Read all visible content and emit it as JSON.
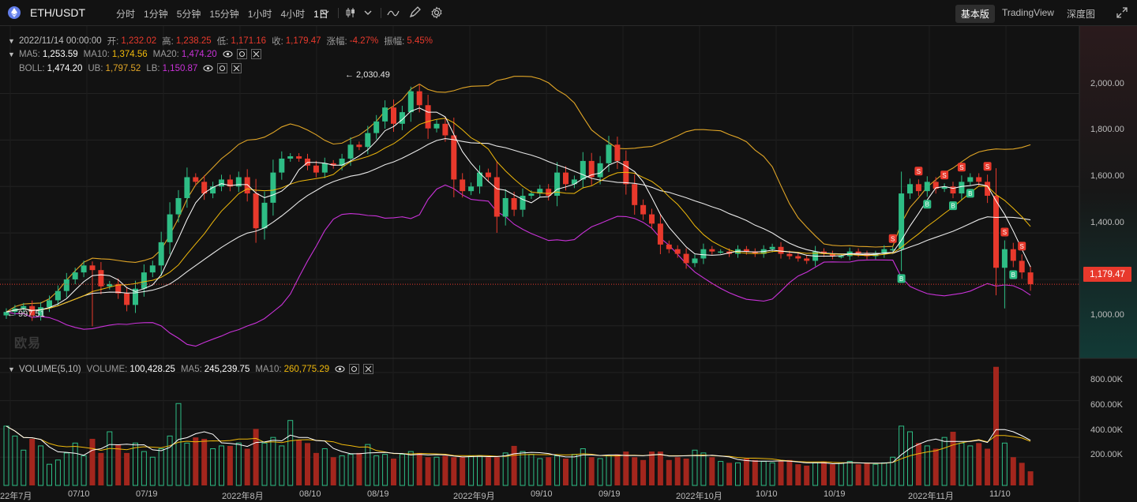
{
  "header": {
    "pair": "ETH/USDT",
    "intervals": [
      "分时",
      "1分钟",
      "5分钟",
      "15分钟",
      "1小时",
      "4小时",
      "1日"
    ],
    "active_interval": "1日",
    "modes": [
      "基本版",
      "TradingView",
      "深度图"
    ],
    "active_mode": "基本版"
  },
  "ohlc": {
    "date": "2022/11/14 00:00:00",
    "open_label": "开:",
    "open": "1,232.02",
    "high_label": "高:",
    "high": "1,238.25",
    "low_label": "低:",
    "low": "1,171.16",
    "close_label": "收:",
    "close": "1,179.47",
    "change_label": "涨幅:",
    "change": "-4.27%",
    "amp_label": "振幅:",
    "amp": "5.45%"
  },
  "ma": {
    "ma5_label": "MA5:",
    "ma5": "1,253.59",
    "ma10_label": "MA10:",
    "ma10": "1,374.56",
    "ma20_label": "MA20:",
    "ma20": "1,474.20"
  },
  "boll": {
    "label": "BOLL:",
    "mid": "1,474.20",
    "ub_label": "UB:",
    "ub": "1,797.52",
    "lb_label": "LB:",
    "lb": "1,150.87"
  },
  "volume": {
    "label": "VOLUME(5,10)",
    "vol_label": "VOLUME:",
    "vol": "100,428.25",
    "ma5_label": "MA5:",
    "ma5": "245,239.75",
    "ma10_label": "MA10:",
    "ma10": "260,775.29"
  },
  "price_axis": [
    "2,000.00",
    "1,800.00",
    "1,600.00",
    "1,400.00",
    "1,200.00",
    "1,000.00"
  ],
  "volume_axis": [
    "800.00K",
    "600.00K",
    "400.00K",
    "200.00K"
  ],
  "current_price": "1,179.47",
  "high_marker": "← 2,030.49",
  "low_marker": "← 997.51",
  "x_axis": [
    "22年7月",
    "07/10",
    "07/19",
    "2022年8月",
    "08/10",
    "08/19",
    "2022年9月",
    "09/10",
    "09/19",
    "2022年10月",
    "10/10",
    "10/19",
    "2022年11月",
    "11/10"
  ],
  "watermark": "欧易",
  "signals": {
    "sell": "S",
    "buy": "B"
  },
  "colors": {
    "up": "#2ebd85",
    "down": "#e8392c",
    "ma5": "#ffffff",
    "ma10": "#f0b90b",
    "ma20": "#ffffff",
    "boll_mid": "#ffffff",
    "boll_ub": "#e0a526",
    "boll_lb": "#c932d8"
  },
  "chart_data": {
    "type": "candlestick",
    "interval": "1日",
    "price_ylim": [
      860,
      2250
    ],
    "volume_ylim": [
      0,
      900000
    ],
    "close": [
      1060,
      1075,
      1085,
      1045,
      1080,
      1110,
      1150,
      1200,
      1230,
      1260,
      1240,
      1170,
      1180,
      1140,
      1090,
      1160,
      1230,
      1260,
      1360,
      1480,
      1550,
      1640,
      1620,
      1570,
      1600,
      1630,
      1600,
      1640,
      1570,
      1420,
      1530,
      1660,
      1720,
      1730,
      1720,
      1690,
      1660,
      1700,
      1690,
      1720,
      1780,
      1770,
      1830,
      1880,
      1940,
      1870,
      1920,
      2010,
      1950,
      1850,
      1870,
      1820,
      1630,
      1580,
      1600,
      1660,
      1640,
      1470,
      1550,
      1500,
      1560,
      1570,
      1590,
      1560,
      1660,
      1610,
      1630,
      1710,
      1640,
      1700,
      1780,
      1710,
      1610,
      1520,
      1480,
      1440,
      1350,
      1330,
      1310,
      1270,
      1290,
      1330,
      1320,
      1320,
      1310,
      1330,
      1320,
      1310,
      1330,
      1340,
      1310,
      1300,
      1290,
      1280,
      1320,
      1310,
      1300,
      1300,
      1320,
      1310,
      1300,
      1310,
      1330,
      1330,
      1570,
      1610,
      1580,
      1620,
      1590,
      1600,
      1570,
      1620,
      1640,
      1620,
      1560,
      1250,
      1330,
      1280,
      1230,
      1179
    ],
    "volume": [
      420,
      350,
      250,
      330,
      280,
      150,
      180,
      230,
      300,
      210,
      330,
      230,
      380,
      290,
      230,
      300,
      240,
      200,
      260,
      350,
      580,
      300,
      340,
      330,
      260,
      280,
      280,
      300,
      260,
      400,
      300,
      340,
      280,
      460,
      320,
      300,
      230,
      260,
      200,
      210,
      220,
      230,
      290,
      210,
      220,
      190,
      220,
      240,
      230,
      200,
      200,
      210,
      200,
      200,
      210,
      210,
      200,
      200,
      230,
      280,
      240,
      220,
      190,
      200,
      210,
      190,
      220,
      260,
      200,
      190,
      210,
      220,
      240,
      200,
      180,
      240,
      240,
      180,
      200,
      190,
      250,
      230,
      200,
      170,
      160,
      160,
      190,
      180,
      170,
      160,
      170,
      180,
      150,
      140,
      160,
      170,
      150,
      160,
      170,
      150,
      160,
      150,
      160,
      200,
      420,
      380,
      300,
      280,
      260,
      340,
      380,
      300,
      280,
      300,
      260,
      840,
      300,
      200,
      160,
      100
    ]
  }
}
